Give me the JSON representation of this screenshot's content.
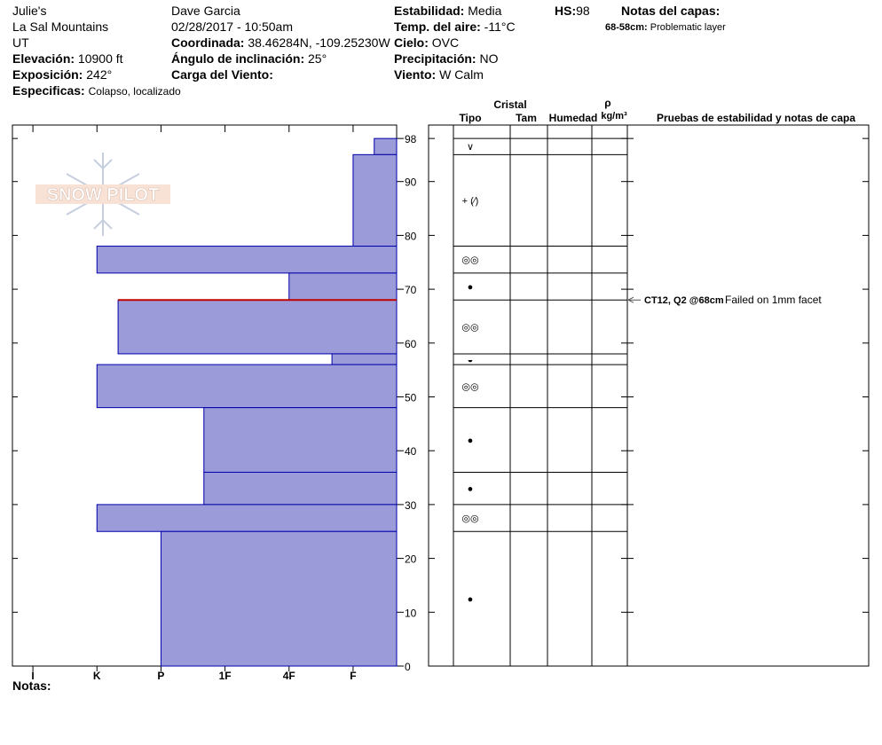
{
  "header": {
    "location": [
      "Julie's",
      "La Sal Mountains",
      "UT"
    ],
    "observer": "Dave Garcia",
    "datetime": "02/28/2017 - 10:50am",
    "fields": [
      {
        "label": "Elevación:",
        "value": "10900 ft"
      },
      {
        "label": "Exposición:",
        "value": "242°"
      },
      {
        "label": "Especificas:",
        "value": "Colapso, localizado"
      },
      {
        "label": "Coordinada:",
        "value": "38.46284N, -109.25230W"
      },
      {
        "label": "Ángulo de inclinación:",
        "value": "25°"
      },
      {
        "label": "Carga del Viento:"
      },
      {
        "label": "Estabilidad:",
        "value": "Media"
      },
      {
        "label": "Temp. del aire:",
        "value": "-11°C"
      },
      {
        "label": "Cielo:",
        "value": "OVC"
      },
      {
        "label": "Precipitación:",
        "value": "NO"
      },
      {
        "label": "Viento:",
        "value": "W Calm"
      },
      {
        "label": "HS:",
        "value": "98"
      }
    ],
    "layer_notes_title": "Notas del capas:",
    "layer_notes": [
      {
        "range": "68-58cm:",
        "text": "Problematic layer"
      }
    ],
    "logo": "SNOW PILOT",
    "notes_label": "Notas:"
  },
  "table_headers": {
    "crystal": "Cristal",
    "type": "Tipo",
    "size": "Tam",
    "moisture": "Humedad",
    "rho": "ρ",
    "density_unit": "kg/m³",
    "tests": "Pruebas de estabilidad y notas de capa"
  },
  "chart_data": {
    "type": "snow-profile",
    "ylim": [
      0,
      100
    ],
    "yticks": [
      0,
      10,
      20,
      30,
      40,
      50,
      60,
      70,
      80,
      90,
      98
    ],
    "xlim": [
      6.32,
      0.32
    ],
    "xticks": [
      {
        "value": 6,
        "label": "I"
      },
      {
        "value": 5,
        "label": "K"
      },
      {
        "value": 4,
        "label": "P"
      },
      {
        "value": 3,
        "label": "1F"
      },
      {
        "value": 2,
        "label": "4F"
      },
      {
        "value": 1,
        "label": "F"
      }
    ],
    "color": "#9b9bd9",
    "edge_color": "#0000aa",
    "layers": [
      {
        "top": 98,
        "bottom": 95,
        "hardness": 0.67,
        "grain": "∨"
      },
      {
        "top": 95,
        "bottom": 78,
        "hardness": 1,
        "grain": "+ (⁄)"
      },
      {
        "top": 78,
        "bottom": 73,
        "hardness": 5,
        "grain": "◎◎"
      },
      {
        "top": 73,
        "bottom": 68,
        "hardness": 2,
        "grain": "●"
      },
      {
        "top": 68,
        "bottom": 58,
        "hardness": 4.67,
        "grain": "◎◎"
      },
      {
        "top": 58,
        "bottom": 56,
        "hardness": 1.33,
        "grain": "◒"
      },
      {
        "top": 56,
        "bottom": 48,
        "hardness": 5,
        "grain": "◎◎"
      },
      {
        "top": 48,
        "bottom": 36,
        "hardness": 3.33,
        "grain": "●"
      },
      {
        "top": 36,
        "bottom": 30,
        "hardness": 3.33,
        "grain": "●"
      },
      {
        "top": 30,
        "bottom": 25,
        "hardness": 5,
        "grain": "◎◎"
      },
      {
        "top": 25,
        "bottom": 0,
        "hardness": 4,
        "grain": "●"
      }
    ],
    "stability_tests": [
      {
        "depth": 68,
        "label": "CT12, Q2 @68cm",
        "note": "Failed on 1mm facet",
        "color": "#c00000"
      }
    ]
  }
}
